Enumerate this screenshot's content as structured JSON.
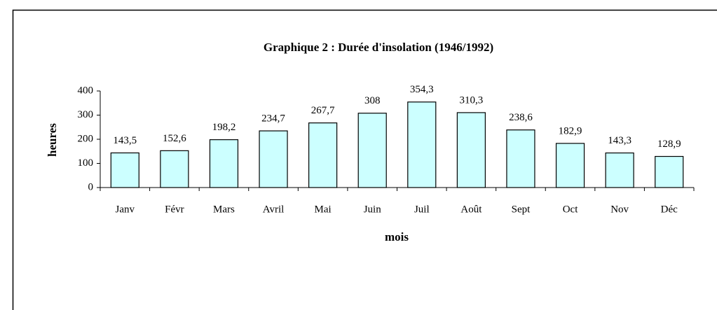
{
  "chart_data": {
    "type": "bar",
    "title": "Graphique 2 : Durée d'insolation (1946/1992)",
    "ylabel": "heures",
    "xlabel": "mois",
    "categories": [
      "Janv",
      "Févr",
      "Mars",
      "Avril",
      "Mai",
      "Juin",
      "Juil",
      "Août",
      "Sept",
      "Oct",
      "Nov",
      "Déc"
    ],
    "values": [
      143.5,
      152.6,
      198.2,
      234.7,
      267.7,
      308,
      354.3,
      310.3,
      238.6,
      182.9,
      143.3,
      128.9
    ],
    "value_labels": [
      "143,5",
      "152,6",
      "198,2",
      "234,7",
      "267,7",
      "308",
      "354,3",
      "310,3",
      "238,6",
      "182,9",
      "143,3",
      "128,9"
    ],
    "color": "#ccffff",
    "ylim": [
      0,
      400
    ],
    "yticks": [
      0,
      100,
      200,
      300,
      400
    ],
    "grid": false
  }
}
